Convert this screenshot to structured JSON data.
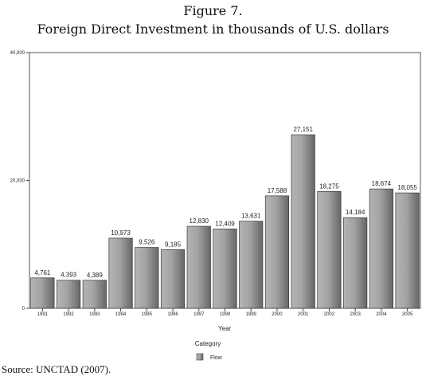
{
  "figure": {
    "number": "Figure 7.",
    "title": "Foreign Direct Investment in thousands of U.S. dollars"
  },
  "source": "Source: UNCTAD (2007).",
  "chart_data": {
    "type": "bar",
    "categories": [
      "1991",
      "1992",
      "1993",
      "1994",
      "1995",
      "1996",
      "1997",
      "1998",
      "1999",
      "2000",
      "2001",
      "2002",
      "2003",
      "2004",
      "2005"
    ],
    "series": [
      {
        "name": "Flow",
        "values": [
          4761,
          4393,
          4389,
          10973,
          9526,
          9185,
          12830,
          12409,
          13631,
          17588,
          27151,
          18275,
          14184,
          18674,
          18055
        ],
        "value_labels": [
          "4,761",
          "4,393",
          "4,389",
          "10,973",
          "9,526",
          "9,185",
          "12,830",
          "12,409",
          "13,631",
          "17,588",
          "27,151",
          "18,275",
          "14,184",
          "18,674",
          "18,055"
        ]
      }
    ],
    "ylim": [
      0,
      40000
    ],
    "yticks": [
      0,
      20000,
      40000
    ],
    "ytick_labels": [
      "0",
      "20,000",
      "40,000"
    ],
    "xlabel": "Year",
    "ylabel": "",
    "legend_title": "Category",
    "legend_position": "bottom-center",
    "grid": false,
    "bar_color": "#8c8c8c"
  }
}
